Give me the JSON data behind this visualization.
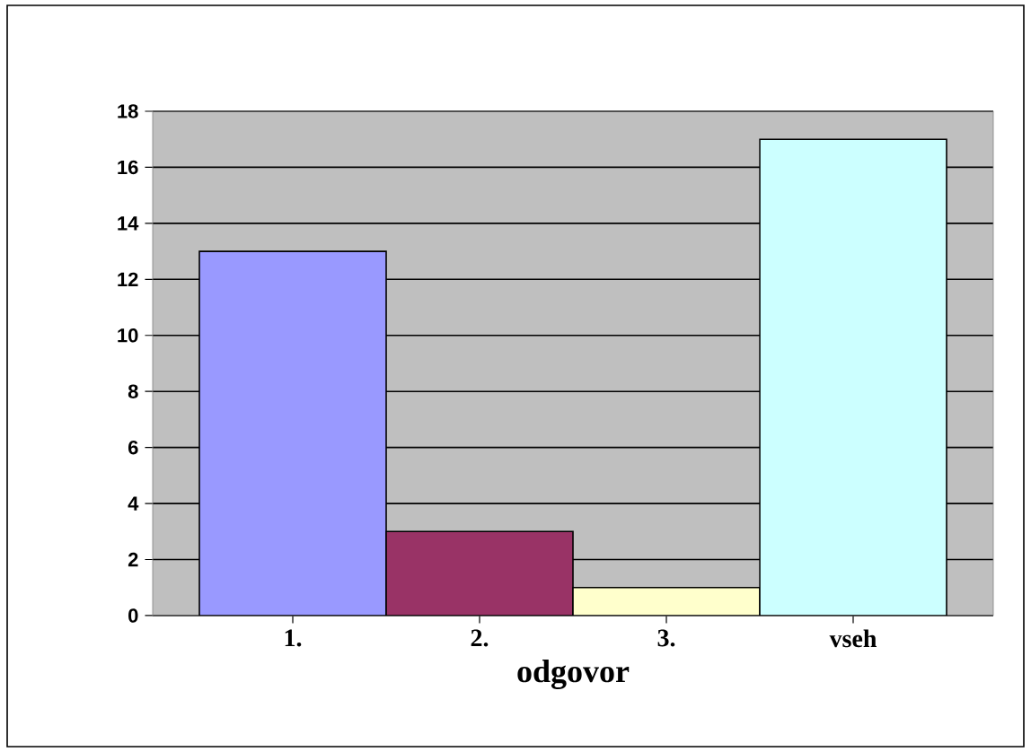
{
  "chart_data": {
    "type": "bar",
    "xlabel": "odgovor",
    "categories": [
      "1.",
      "2.",
      "3.",
      "vseh"
    ],
    "values": [
      13,
      3,
      1,
      17
    ],
    "colors": [
      "#9999ff",
      "#993366",
      "#ffffcc",
      "#ccffff"
    ],
    "ylim": [
      0,
      18
    ],
    "yticks": [
      0,
      2,
      4,
      6,
      8,
      10,
      12,
      14,
      16,
      18
    ],
    "grid": "y"
  }
}
